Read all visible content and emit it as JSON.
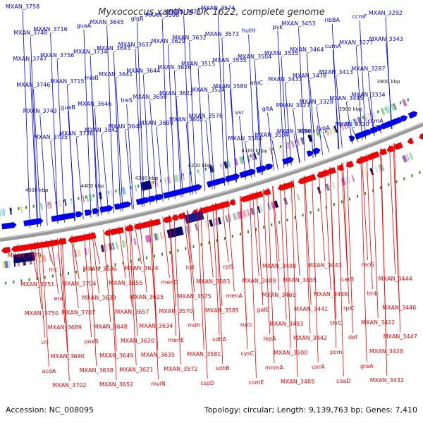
{
  "title": "Myxococcus xanthus DK 1622, complete genome",
  "footer": {
    "accession": "Accession: NC_008095",
    "summary": "Topology: circular; Length: 9,139,763 bp; Genes: 7,410"
  },
  "colors": {
    "forward": "#0000ee",
    "reverse": "#ee0000",
    "backbone": "#888888"
  },
  "ticks": [
    "3800 kbp",
    "3900 kbp",
    "4000 kbp",
    "4100 kbp",
    "4200 kbp",
    "4300 kbp",
    "4400 kbp",
    "4500 kbp"
  ],
  "forward_genes": [
    "MXAN_3758",
    "MXAN_3748",
    "MXAN_3747",
    "MXAN_3746",
    "MXAN_3743",
    "MXAN_3735",
    "MXAN_3716",
    "MXAN_3756",
    "MXAN_3715",
    "guaB",
    "MXAN_3736",
    "guaA",
    "MXAN_3734",
    "miaB",
    "MXAN_3646",
    "MXAN_3642",
    "MXAN_3645",
    "MXAN_3643",
    "MXAN_3641",
    "treS",
    "MXAN_3640",
    "glgB",
    "MXAN_3637",
    "MXAN_3644",
    "MXAN_3658",
    "MXAN_3600",
    "MXAN_3598",
    "MXAN_3629",
    "MXAN_3626",
    "MXAN_3622",
    "MXAN_3605",
    "MXAN_3623",
    "MXAN_3632",
    "MXAN_3515",
    "MXAN_3524",
    "MXAN_3576",
    "MXAN_3574",
    "MXAN_3573",
    "MXAN_3555",
    "MXAN_3580",
    "vsr",
    "MXAN_3584",
    "hutH",
    "MXAN_3504",
    "aroC",
    "gltA",
    "MXAN_3534",
    "pyk",
    "MXAN_3535",
    "MXAN_3433",
    "MXAN_3427",
    "MXAN_3436",
    "MXAN_3453",
    "MXAN_3464",
    "MXAN_3478",
    "MXAN_3328",
    "typA",
    "ribBA",
    "cumA",
    "MXAN_3413",
    "MXAN_3445",
    "MXAN_3220",
    "ccmF",
    "MXAN_3277",
    "MXAN_3287",
    "MXAN_3334",
    "ccmA",
    "MXAN_3292",
    "MXAN_3343"
  ],
  "reverse_genes": [
    "MXAN_3779",
    "MXAN_3751",
    "MXAN_3750",
    "crt",
    "acdA",
    "rnc",
    "era",
    "MXAN_3689",
    "MXAN_3690",
    "MXAN_3702",
    "MXAN_3704",
    "MXAN_3707",
    "poxB",
    "MXAN_3638",
    "MXAN_3636",
    "MXAN_3639",
    "MXAN_3648",
    "MXAN_3649",
    "MXAN_3652",
    "MXAN_3655",
    "MXAN_3657",
    "MXAN_3620",
    "MXAN_3621",
    "MXAN_3624",
    "MXAN_3625",
    "MXAN_3634",
    "MXAN_3635",
    "mviN",
    "menD",
    "MXAN_3570",
    "menE",
    "MXAN_3572",
    "icd",
    "MXAN_3575",
    "mdh",
    "MXAN_3581",
    "cspD",
    "MXAN_3583",
    "MXAN_3585",
    "sdhA",
    "sdhB",
    "rplS",
    "menA",
    "succ",
    "cysC",
    "comE",
    "MXAN_3489",
    "galE",
    "lepA",
    "mnmA",
    "MXAN_3498",
    "MXAN_3469",
    "MXAN_3493",
    "MXAN_3500",
    "MXAN_3485",
    "MXAN_3435",
    "MXAN_3441",
    "MXAN_3442",
    "uvrA",
    "MXAN_3443",
    "MXAN_3466",
    "thrC",
    "pcm",
    "coaD",
    "carB",
    "rplC",
    "def",
    "greA",
    "recG",
    "tmk",
    "MXAN_3422",
    "MXAN_3428",
    "MXAN_3432",
    "MXAN_3444",
    "MXAN_3446",
    "MXAN_3447"
  ]
}
